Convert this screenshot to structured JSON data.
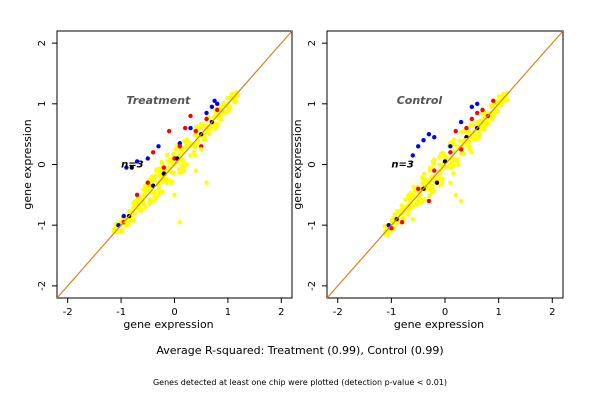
{
  "figure": {
    "caption": "Average R-squared: Treatment (0.99), Control (0.99)",
    "footnote": "Genes detected at least one chip were plotted (detection p-value < 0.01)"
  },
  "chart_data": [
    {
      "type": "scatter",
      "title": "Treatment",
      "n_label": "n=3",
      "xlabel": "gene expression",
      "ylabel": "gene expression",
      "xlim": [
        -2.2,
        2.2
      ],
      "ylim": [
        -2.2,
        2.2
      ],
      "x_ticks": [
        -2,
        -1,
        0,
        1,
        2
      ],
      "y_ticks": [
        -2,
        -1,
        0,
        1,
        2
      ],
      "reference_line": {
        "slope": 1,
        "intercept": 0,
        "color": "#d4851f"
      },
      "series": [
        {
          "color": "#0000ff",
          "values": [
            [
              -1.05,
              -1.0
            ],
            [
              -0.95,
              -0.85
            ],
            [
              -0.5,
              0.1
            ],
            [
              0.7,
              0.95
            ],
            [
              0.8,
              1.0
            ],
            [
              0.75,
              1.05
            ],
            [
              0.3,
              0.6
            ],
            [
              0.1,
              0.35
            ],
            [
              -0.9,
              -0.05
            ],
            [
              -0.7,
              0.05
            ],
            [
              0.6,
              0.85
            ],
            [
              -0.3,
              0.3
            ]
          ]
        },
        {
          "color": "#ff0000",
          "values": [
            [
              -0.95,
              -0.95
            ],
            [
              -0.5,
              -0.3
            ],
            [
              -0.2,
              -0.05
            ],
            [
              0.0,
              0.1
            ],
            [
              0.4,
              0.55
            ],
            [
              0.6,
              0.75
            ],
            [
              -0.1,
              0.55
            ],
            [
              0.1,
              0.3
            ],
            [
              -0.7,
              -0.5
            ],
            [
              0.8,
              0.9
            ],
            [
              -0.4,
              0.2
            ],
            [
              0.2,
              0.6
            ],
            [
              0.5,
              0.3
            ],
            [
              0.3,
              0.8
            ]
          ]
        },
        {
          "color": "#000000",
          "values": [
            [
              -0.85,
              -0.85
            ],
            [
              -0.4,
              -0.35
            ],
            [
              0.05,
              0.1
            ],
            [
              0.5,
              0.5
            ],
            [
              -0.8,
              -0.05
            ],
            [
              -0.2,
              -0.15
            ],
            [
              0.7,
              0.7
            ]
          ]
        },
        {
          "color": "#ffff00",
          "values": [
            [
              -1.1,
              -1.1
            ],
            [
              -0.9,
              -0.95
            ],
            [
              -0.6,
              -0.6
            ],
            [
              -0.3,
              -0.35
            ],
            [
              0.0,
              0.0
            ],
            [
              0.3,
              0.35
            ],
            [
              0.6,
              0.6
            ],
            [
              0.9,
              0.9
            ],
            [
              1.1,
              1.15
            ],
            [
              0.6,
              -0.3
            ],
            [
              0.1,
              -0.95
            ],
            [
              -0.3,
              -0.5
            ],
            [
              0.4,
              -0.1
            ],
            [
              0.5,
              0.25
            ],
            [
              0.0,
              -0.5
            ]
          ]
        }
      ]
    },
    {
      "type": "scatter",
      "title": "Control",
      "n_label": "n=3",
      "xlabel": "gene expression",
      "ylabel": "gene expression",
      "xlim": [
        -2.2,
        2.2
      ],
      "ylim": [
        -2.2,
        2.2
      ],
      "x_ticks": [
        -2,
        -1,
        0,
        1,
        2
      ],
      "y_ticks": [
        -2,
        -1,
        0,
        1,
        2
      ],
      "reference_line": {
        "slope": 1,
        "intercept": 0,
        "color": "#d4851f"
      },
      "series": [
        {
          "color": "#0000ff",
          "values": [
            [
              -1.05,
              -1.0
            ],
            [
              -0.5,
              0.3
            ],
            [
              -0.4,
              0.4
            ],
            [
              -0.3,
              0.5
            ],
            [
              0.3,
              0.7
            ],
            [
              0.5,
              0.95
            ],
            [
              0.1,
              0.3
            ],
            [
              -0.2,
              0.45
            ],
            [
              0.6,
              1.0
            ],
            [
              -0.6,
              0.15
            ]
          ]
        },
        {
          "color": "#ff0000",
          "values": [
            [
              -1.0,
              -1.05
            ],
            [
              -0.8,
              -0.95
            ],
            [
              -0.5,
              -0.4
            ],
            [
              -0.2,
              -0.1
            ],
            [
              0.1,
              0.2
            ],
            [
              0.4,
              0.6
            ],
            [
              0.7,
              0.9
            ],
            [
              0.9,
              1.05
            ],
            [
              0.3,
              0.25
            ],
            [
              -0.3,
              -0.6
            ],
            [
              0.5,
              0.75
            ],
            [
              0.8,
              0.8
            ],
            [
              0.2,
              0.55
            ],
            [
              0.6,
              0.85
            ]
          ]
        },
        {
          "color": "#000000",
          "values": [
            [
              -0.9,
              -0.9
            ],
            [
              -0.4,
              -0.4
            ],
            [
              0.0,
              0.05
            ],
            [
              0.4,
              0.45
            ],
            [
              -0.15,
              -0.3
            ],
            [
              0.6,
              0.6
            ]
          ]
        },
        {
          "color": "#ffff00",
          "values": [
            [
              -1.1,
              -1.15
            ],
            [
              -0.8,
              -0.8
            ],
            [
              -0.5,
              -0.55
            ],
            [
              -0.2,
              -0.2
            ],
            [
              0.1,
              0.1
            ],
            [
              0.4,
              0.4
            ],
            [
              0.7,
              0.7
            ],
            [
              1.0,
              1.0
            ],
            [
              1.1,
              1.15
            ],
            [
              0.2,
              -0.5
            ],
            [
              0.3,
              -0.6
            ],
            [
              0.1,
              -0.3
            ],
            [
              -0.6,
              -0.9
            ],
            [
              0.5,
              0.2
            ]
          ]
        }
      ]
    }
  ]
}
